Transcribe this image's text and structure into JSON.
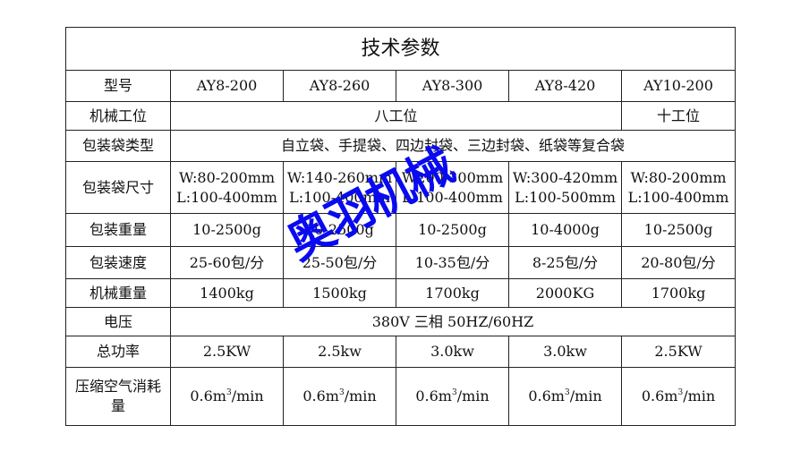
{
  "title": "技术参数",
  "rows": [
    {
      "label": "型号",
      "cells": [
        "AY8-200",
        "AY8-260",
        "AY8-300",
        "AY8-420",
        "AY10-200"
      ]
    },
    {
      "label": "机械工位",
      "merged": "八工位",
      "last": "十工位"
    },
    {
      "label": "包装袋类型",
      "merged": "自立袋、手提袋、四边封袋、三边封袋、纸袋等复合袋"
    },
    {
      "label": "包装袋尺寸",
      "cells": [
        [
          "W:80-200mm",
          "L:100-400mm"
        ],
        [
          "W:140-260mm",
          "L:100-400mm"
        ],
        [
          "W200-300mm",
          "L:100-400mm"
        ],
        [
          "W:300-420mm",
          "L:100-500mm"
        ],
        [
          "W:80-200mm",
          "L:100-400mm"
        ]
      ]
    },
    {
      "label": "包装重量",
      "cells": [
        "10-2500g",
        "10-2500g",
        "10-2500g",
        "10-4000g",
        "10-2500g"
      ]
    },
    {
      "label": "包装速度",
      "cells": [
        "25-60包/分",
        "25-50包/分",
        "10-35包/分",
        "8-25包/分",
        "20-80包/分"
      ]
    },
    {
      "label": "机械重量",
      "cells": [
        "1400kg",
        "1500kg",
        "1700kg",
        "2000KG",
        "1700kg"
      ]
    },
    {
      "label": "电压",
      "merged": "380V 三相 50HZ/60HZ"
    },
    {
      "label": "总功率",
      "cells": [
        "2.5KW",
        "2.5kw",
        "3.0kw",
        "3.0kw",
        "2.5KW"
      ]
    },
    {
      "label": "压缩空气消耗量",
      "cells": [
        "0.6m",
        "0.6m",
        "0.6m",
        "0.6m",
        "0.6m"
      ],
      "sup": "3",
      "unit": "/min"
    }
  ],
  "watermark": "奥羽机械",
  "watermark_color": "#0a0af0"
}
